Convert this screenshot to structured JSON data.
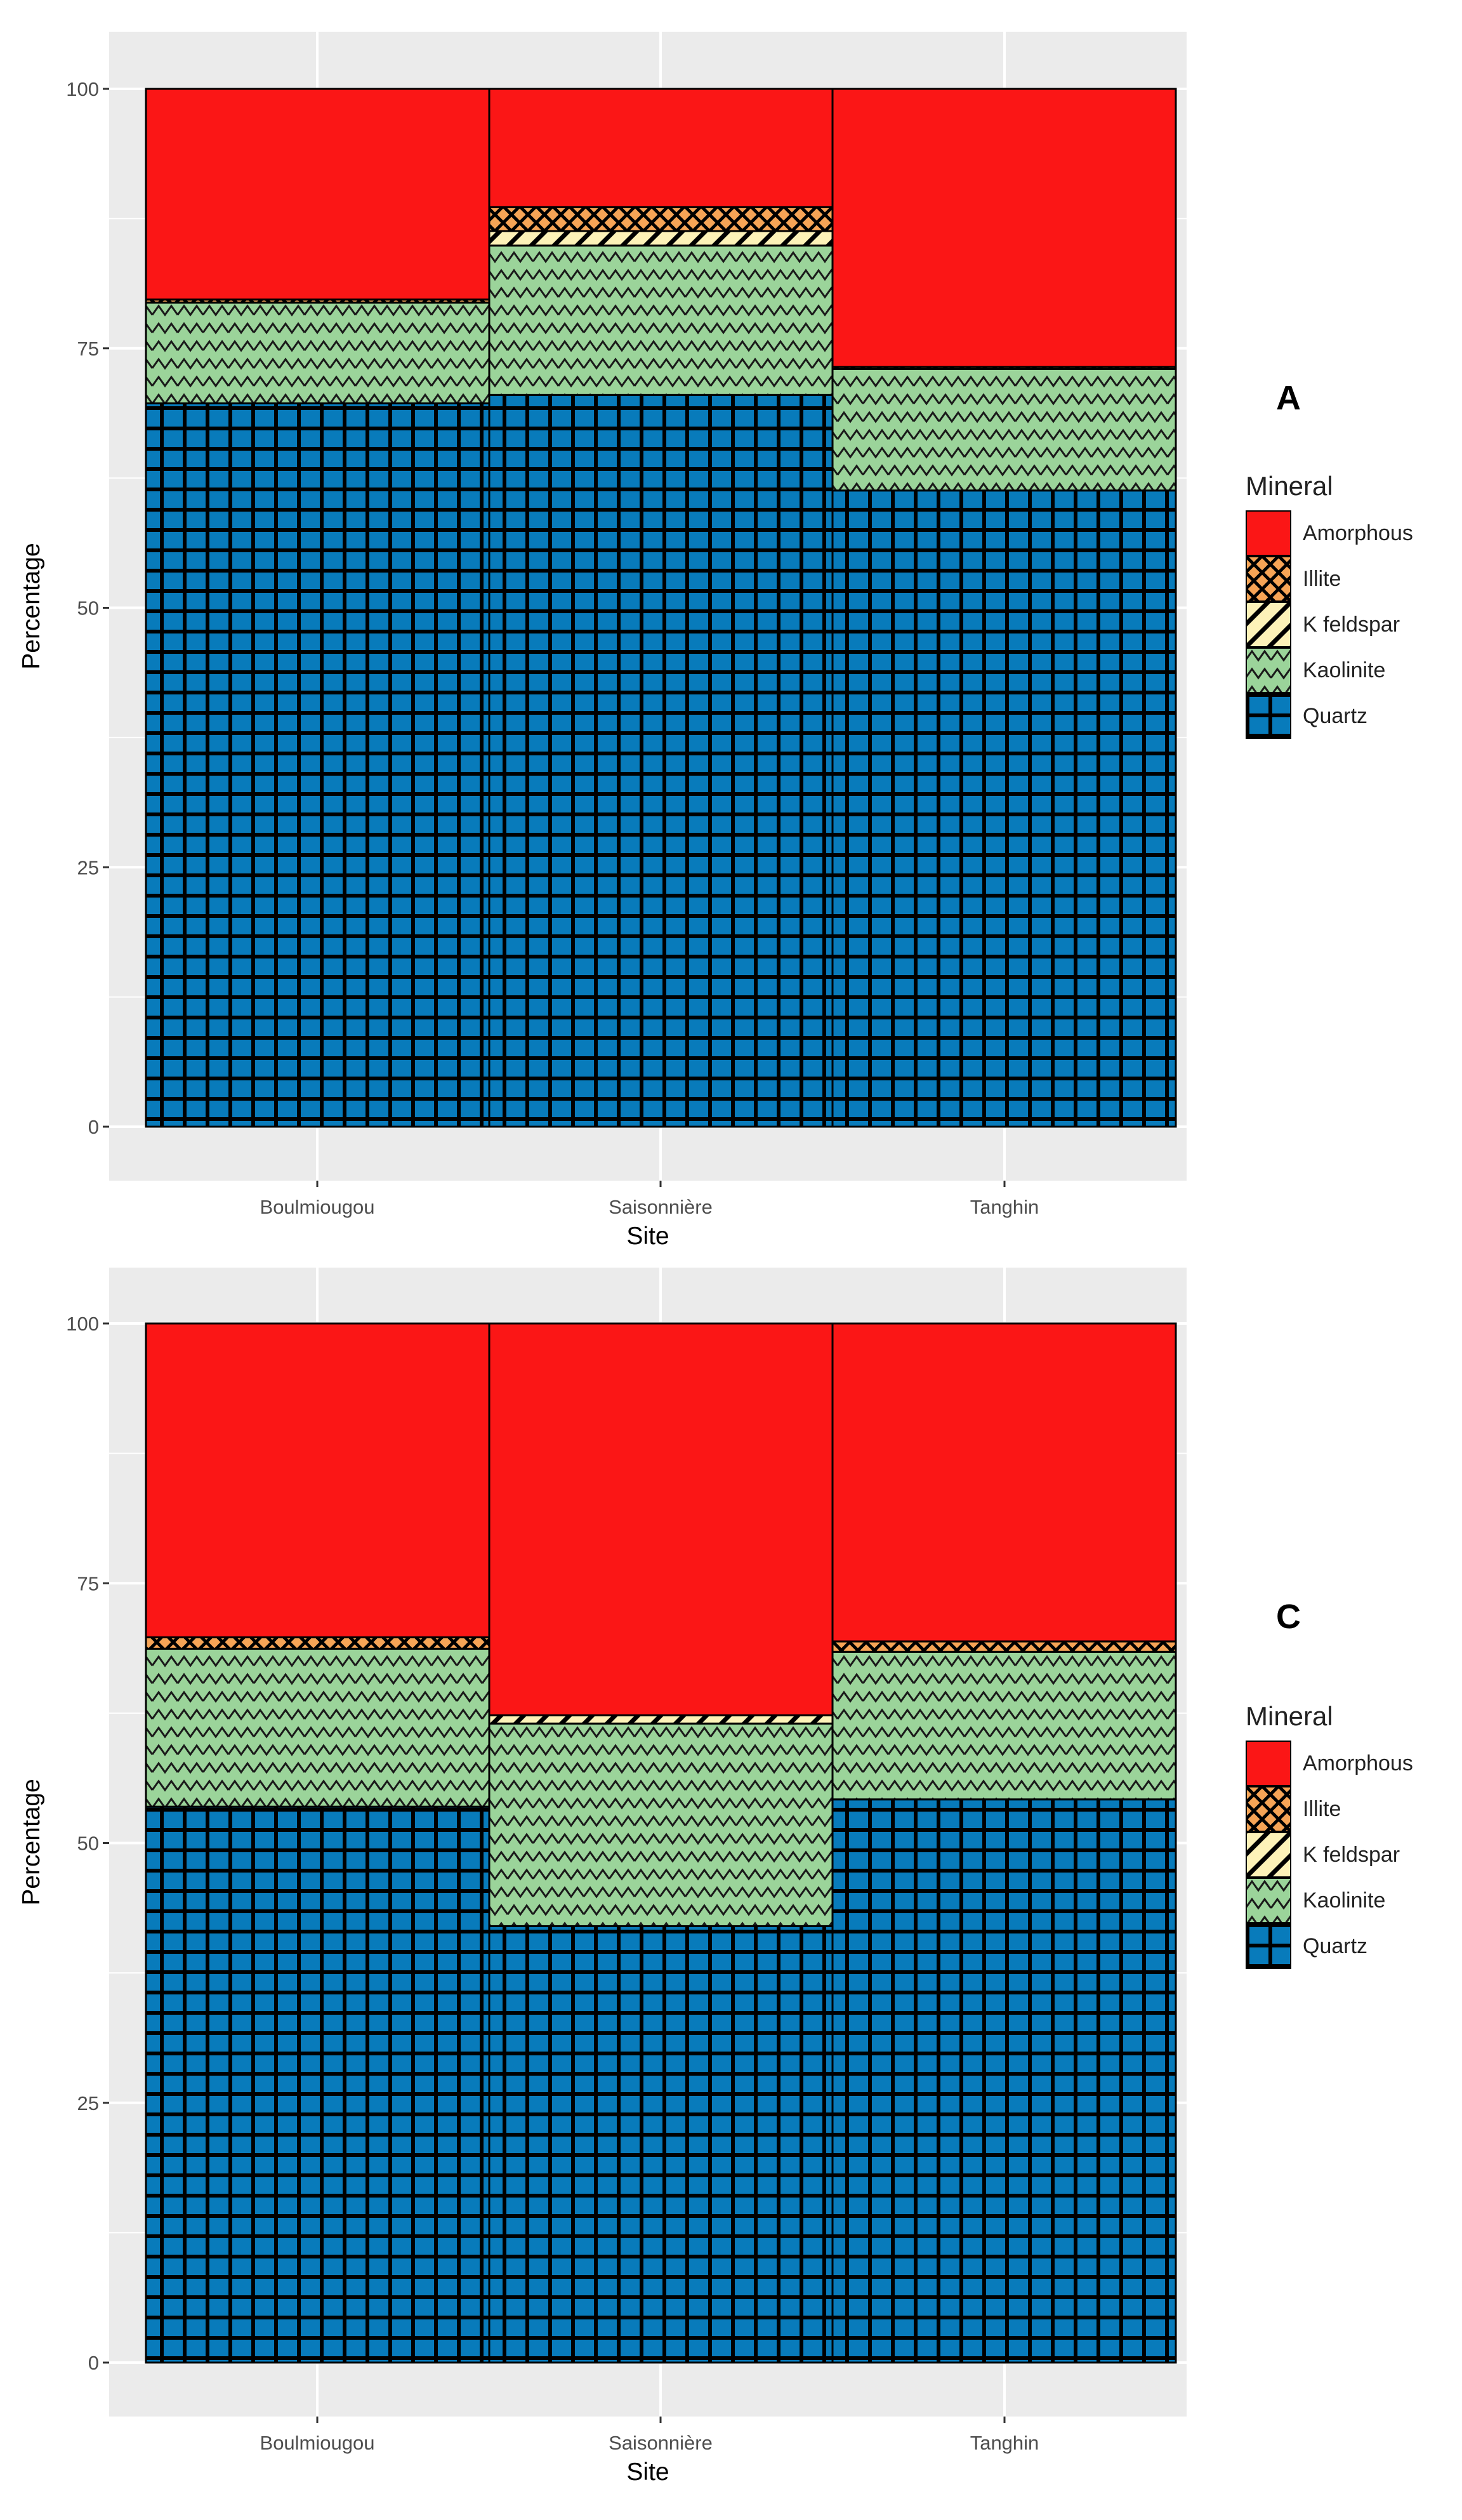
{
  "chart_data": [
    {
      "type": "bar",
      "stacked": true,
      "panel_label": "A",
      "categories": [
        "Boulmiougou",
        "Saisonnière",
        "Tanghin"
      ],
      "series": [
        {
          "name": "Quartz",
          "values": [
            69.7,
            70.5,
            61.3
          ]
        },
        {
          "name": "Kaolinite",
          "values": [
            9.7,
            14.4,
            11.7
          ]
        },
        {
          "name": "K feldspar",
          "values": [
            0.0,
            1.4,
            0.0
          ]
        },
        {
          "name": "Illite",
          "values": [
            0.3,
            2.3,
            0.2
          ]
        },
        {
          "name": "Amorphous",
          "values": [
            20.3,
            11.4,
            26.8
          ]
        }
      ],
      "xlabel": "Site",
      "ylabel": "Percentage",
      "ylim": [
        0,
        100
      ],
      "yticks": [
        0,
        25,
        50,
        75,
        100
      ],
      "grid": true,
      "legend_title": "Mineral",
      "legend_position": "right"
    },
    {
      "type": "bar",
      "stacked": true,
      "panel_label": "C",
      "categories": [
        "Boulmiougou",
        "Saisonnière",
        "Tanghin"
      ],
      "series": [
        {
          "name": "Quartz",
          "values": [
            53.5,
            42.0,
            54.2
          ]
        },
        {
          "name": "Kaolinite",
          "values": [
            15.2,
            19.5,
            14.2
          ]
        },
        {
          "name": "K feldspar",
          "values": [
            0.0,
            0.8,
            0.0
          ]
        },
        {
          "name": "Illite",
          "values": [
            1.1,
            0.0,
            1.0
          ]
        },
        {
          "name": "Amorphous",
          "values": [
            30.2,
            37.7,
            30.6
          ]
        }
      ],
      "xlabel": "Site",
      "ylabel": "Percentage",
      "ylim": [
        0,
        100
      ],
      "yticks": [
        0,
        25,
        50,
        75,
        100
      ],
      "grid": true,
      "legend_title": "Mineral",
      "legend_position": "right"
    }
  ],
  "legend_order": [
    "Amorphous",
    "Illite",
    "K feldspar",
    "Kaolinite",
    "Quartz"
  ],
  "colors": {
    "Amorphous": "#fb1616",
    "Illite": "#f6a456",
    "K feldspar": "#fdf2b8",
    "Kaolinite": "#9bd49a",
    "Quartz": "#087bbb",
    "panel_background": "#ebebeb",
    "gridline": "#ffffff"
  }
}
